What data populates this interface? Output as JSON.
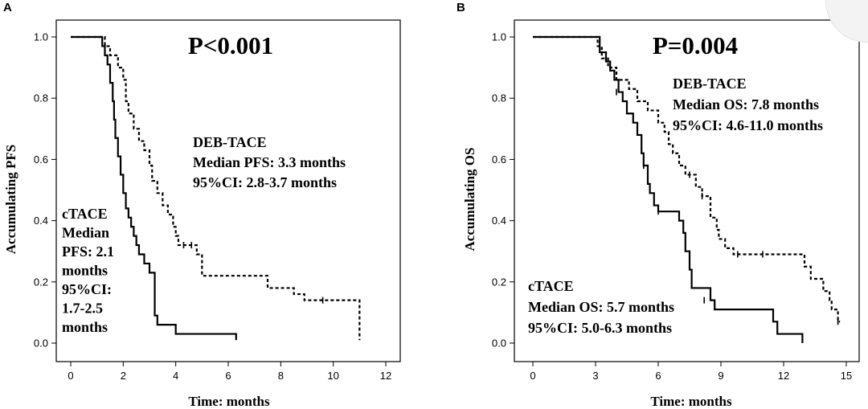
{
  "chart_data": [
    {
      "type": "line",
      "panel_label": "A",
      "title": "P<0.001",
      "xlabel": "Time: months",
      "ylabel": "Accumulating PFS",
      "xlim": [
        0,
        12
      ],
      "ylim": [
        0,
        1.0
      ],
      "xticks": [
        0,
        2,
        4,
        6,
        8,
        10,
        12
      ],
      "yticks": [
        0.0,
        0.2,
        0.4,
        0.6,
        0.8,
        1.0
      ],
      "grid": false,
      "annotations": [
        {
          "id": "deb",
          "lines": [
            "DEB-TACE",
            "Median PFS: 3.3 months",
            "95%CI: 2.8-3.7 months"
          ]
        },
        {
          "id": "ctace",
          "lines": [
            "cTACE",
            "Median",
            "PFS: 2.1",
            "months",
            "95%CI:",
            "1.7-2.5",
            "months"
          ]
        }
      ],
      "series": [
        {
          "id": "ctace",
          "style": "solid",
          "points": [
            [
              0,
              1.0
            ],
            [
              1.1,
              1.0
            ],
            [
              1.2,
              0.97
            ],
            [
              1.3,
              0.94
            ],
            [
              1.4,
              0.91
            ],
            [
              1.5,
              0.85
            ],
            [
              1.6,
              0.79
            ],
            [
              1.65,
              0.73
            ],
            [
              1.7,
              0.67
            ],
            [
              1.8,
              0.61
            ],
            [
              1.9,
              0.55
            ],
            [
              2.0,
              0.49
            ],
            [
              2.1,
              0.44
            ],
            [
              2.2,
              0.41
            ],
            [
              2.3,
              0.38
            ],
            [
              2.4,
              0.35
            ],
            [
              2.5,
              0.32
            ],
            [
              2.6,
              0.29
            ],
            [
              2.8,
              0.26
            ],
            [
              3.0,
              0.23
            ],
            [
              3.2,
              0.09
            ],
            [
              3.3,
              0.06
            ],
            [
              4.0,
              0.03
            ],
            [
              6.3,
              0.01
            ]
          ],
          "censored": []
        },
        {
          "id": "deb",
          "style": "dashed",
          "points": [
            [
              0,
              1.0
            ],
            [
              1.1,
              1.0
            ],
            [
              1.3,
              0.97
            ],
            [
              1.5,
              0.94
            ],
            [
              1.8,
              0.9
            ],
            [
              2.0,
              0.86
            ],
            [
              2.1,
              0.79
            ],
            [
              2.2,
              0.75
            ],
            [
              2.4,
              0.7
            ],
            [
              2.6,
              0.66
            ],
            [
              2.8,
              0.63
            ],
            [
              3.0,
              0.58
            ],
            [
              3.1,
              0.53
            ],
            [
              3.3,
              0.49
            ],
            [
              3.5,
              0.45
            ],
            [
              3.7,
              0.42
            ],
            [
              3.9,
              0.38
            ],
            [
              4.0,
              0.35
            ],
            [
              4.1,
              0.32
            ],
            [
              4.8,
              0.29
            ],
            [
              5.0,
              0.26
            ],
            [
              5.0,
              0.22
            ],
            [
              7.5,
              0.18
            ],
            [
              8.5,
              0.16
            ],
            [
              8.9,
              0.14
            ],
            [
              11.0,
              0.14
            ],
            [
              11.0,
              0.01
            ]
          ],
          "censored": [
            [
              4.3,
              0.32
            ],
            [
              4.6,
              0.32
            ],
            [
              9.6,
              0.14
            ]
          ]
        }
      ]
    },
    {
      "type": "line",
      "panel_label": "B",
      "title": "P=0.004",
      "xlabel": "Time: months",
      "ylabel": "Accumulating OS",
      "xlim": [
        0,
        15
      ],
      "ylim": [
        0,
        1.0
      ],
      "xticks": [
        0,
        3,
        6,
        9,
        12,
        15
      ],
      "yticks": [
        0.0,
        0.2,
        0.4,
        0.6,
        0.8,
        1.0
      ],
      "grid": false,
      "annotations": [
        {
          "id": "deb",
          "lines": [
            "DEB-TACE",
            "Median OS: 7.8 months",
            "95%CI: 4.6-11.0 months"
          ]
        },
        {
          "id": "ctace",
          "lines": [
            "cTACE",
            "Median OS: 5.7 months",
            "95%CI: 5.0-6.3 months"
          ]
        }
      ],
      "series": [
        {
          "id": "ctace",
          "style": "solid",
          "points": [
            [
              0,
              1.0
            ],
            [
              2.8,
              1.0
            ],
            [
              3.2,
              0.95
            ],
            [
              3.5,
              0.92
            ],
            [
              3.7,
              0.89
            ],
            [
              3.9,
              0.86
            ],
            [
              4.1,
              0.82
            ],
            [
              4.3,
              0.79
            ],
            [
              4.5,
              0.75
            ],
            [
              4.8,
              0.72
            ],
            [
              5.0,
              0.68
            ],
            [
              5.2,
              0.62
            ],
            [
              5.3,
              0.58
            ],
            [
              5.5,
              0.52
            ],
            [
              5.6,
              0.49
            ],
            [
              5.8,
              0.45
            ],
            [
              6.0,
              0.43
            ],
            [
              7.0,
              0.4
            ],
            [
              7.2,
              0.36
            ],
            [
              7.3,
              0.3
            ],
            [
              7.5,
              0.24
            ],
            [
              7.6,
              0.18
            ],
            [
              8.5,
              0.14
            ],
            [
              8.7,
              0.11
            ],
            [
              11.5,
              0.07
            ],
            [
              11.7,
              0.03
            ],
            [
              12.9,
              0.03
            ],
            [
              12.9,
              0.0
            ]
          ],
          "censored": [
            [
              4.0,
              0.82
            ],
            [
              5.3,
              0.58
            ],
            [
              6.0,
              0.43
            ],
            [
              8.2,
              0.14
            ]
          ]
        },
        {
          "id": "deb",
          "style": "dashed",
          "points": [
            [
              0,
              1.0
            ],
            [
              2.9,
              1.0
            ],
            [
              3.1,
              0.97
            ],
            [
              3.3,
              0.93
            ],
            [
              3.6,
              0.9
            ],
            [
              4.0,
              0.86
            ],
            [
              4.6,
              0.83
            ],
            [
              5.0,
              0.79
            ],
            [
              5.5,
              0.76
            ],
            [
              6.0,
              0.72
            ],
            [
              6.3,
              0.69
            ],
            [
              6.5,
              0.65
            ],
            [
              6.7,
              0.62
            ],
            [
              7.0,
              0.58
            ],
            [
              7.3,
              0.55
            ],
            [
              7.8,
              0.51
            ],
            [
              8.1,
              0.48
            ],
            [
              8.5,
              0.41
            ],
            [
              8.8,
              0.37
            ],
            [
              8.9,
              0.34
            ],
            [
              9.2,
              0.31
            ],
            [
              9.6,
              0.29
            ],
            [
              10.0,
              0.29
            ],
            [
              10.8,
              0.29
            ],
            [
              13.0,
              0.25
            ],
            [
              13.3,
              0.21
            ],
            [
              13.9,
              0.17
            ],
            [
              14.2,
              0.14
            ],
            [
              14.3,
              0.11
            ],
            [
              14.6,
              0.07
            ],
            [
              14.7,
              0.07
            ]
          ],
          "censored": [
            [
              7.5,
              0.55
            ],
            [
              8.1,
              0.48
            ],
            [
              9.8,
              0.29
            ],
            [
              11.0,
              0.29
            ],
            [
              14.6,
              0.07
            ]
          ]
        }
      ]
    }
  ]
}
